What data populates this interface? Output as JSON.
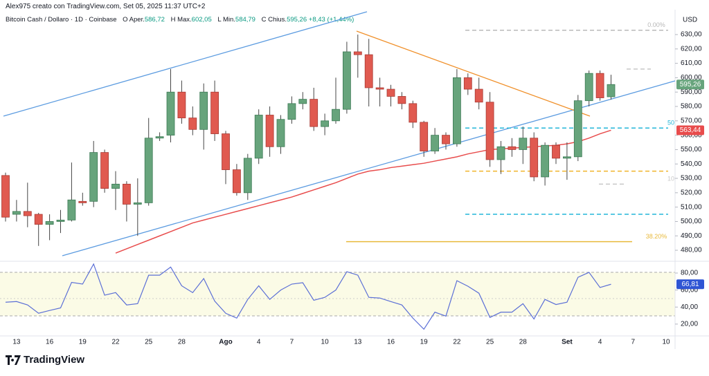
{
  "header": {
    "author_line": "Alex975 creato con TradingView.com, Set 05, 2025 11:37 UTC+2"
  },
  "legend": {
    "symbol": "Bitcoin Cash / Dollaro · 1D · Coinbase",
    "o_key": "O",
    "o_label": "Aper.",
    "o_value": "586,72",
    "h_key": "H",
    "h_label": "Max.",
    "h_value": "602,05",
    "l_key": "L",
    "l_label": "Min.",
    "l_value": "584,79",
    "c_key": "C",
    "c_label": "Chius.",
    "c_value": "595,26",
    "change": "+8,43 (+1,44%)"
  },
  "brand": "TradingView",
  "chart_data": [
    {
      "type": "candlestick",
      "y_unit": "USD",
      "up_color": "#67a47c",
      "down_color": "#e05a50",
      "categories": [
        null,
        "13",
        null,
        null,
        "16",
        null,
        null,
        "19",
        null,
        null,
        "22",
        null,
        null,
        "25",
        null,
        null,
        "28",
        null,
        null,
        null,
        "Ago",
        null,
        null,
        "4",
        null,
        null,
        "7",
        null,
        null,
        "10",
        null,
        null,
        "13",
        null,
        null,
        "16",
        null,
        null,
        "19",
        null,
        null,
        "22",
        null,
        null,
        "25",
        null,
        null,
        "28",
        null,
        null,
        null,
        "Set",
        null,
        null,
        "4",
        null,
        null,
        "7",
        null,
        null,
        "10"
      ],
      "open": [
        532,
        505,
        507,
        505,
        498,
        500,
        501,
        514,
        514,
        548,
        523,
        526,
        512,
        513,
        558,
        560,
        590,
        572,
        564,
        590,
        561,
        536,
        520,
        544,
        574,
        552,
        571,
        582,
        585,
        566,
        570,
        578,
        618,
        616,
        593,
        592,
        587,
        582,
        569,
        549,
        560,
        554,
        600,
        592,
        583,
        543,
        552,
        550,
        558,
        531,
        553,
        544,
        545,
        584,
        603,
        586.72,
        null,
        null,
        null,
        null,
        null
      ],
      "high": [
        534,
        515,
        527,
        506,
        505,
        508,
        541,
        520,
        556,
        550,
        535,
        528,
        530,
        572,
        562,
        606,
        598,
        580,
        596,
        598,
        563,
        540,
        547,
        578,
        580,
        574,
        587,
        590,
        593,
        575,
        600,
        625,
        630,
        627,
        600,
        595,
        590,
        584,
        570,
        565,
        562,
        606,
        603,
        600,
        590,
        556,
        558,
        566,
        562,
        555,
        555,
        555,
        588,
        605,
        605,
        602.05,
        null,
        null,
        null,
        null,
        null
      ],
      "low": [
        500,
        500,
        496,
        483,
        487,
        492,
        500,
        511,
        510,
        520,
        508,
        500,
        490,
        511,
        556,
        555,
        568,
        560,
        550,
        556,
        526,
        518,
        515,
        540,
        545,
        547,
        568,
        578,
        563,
        560,
        568,
        575,
        600,
        580,
        580,
        580,
        578,
        565,
        545,
        547,
        550,
        552,
        588,
        578,
        538,
        533,
        545,
        540,
        528,
        525,
        540,
        529,
        542,
        580,
        584,
        584.79,
        null,
        null,
        null,
        null,
        null
      ],
      "close": [
        503,
        507,
        504,
        498,
        500,
        501,
        515,
        513,
        548,
        523,
        526,
        512,
        513,
        558,
        559,
        590,
        572,
        564,
        590,
        561,
        536,
        520,
        544,
        574,
        552,
        571,
        582,
        585,
        566,
        570,
        578,
        618,
        616,
        593,
        592,
        587,
        582,
        569,
        549,
        560,
        554,
        600,
        592,
        583,
        543,
        552,
        550,
        558,
        531,
        553,
        544,
        545,
        584,
        603,
        586,
        595.26,
        null,
        null,
        null,
        null,
        null
      ],
      "ma": {
        "color": "#e84c4c",
        "values": [
          null,
          null,
          null,
          null,
          null,
          null,
          null,
          null,
          null,
          null,
          478,
          481,
          484,
          487,
          490,
          493,
          496,
          499,
          501,
          503,
          505,
          507,
          509,
          511,
          513,
          515,
          517,
          519.5,
          522,
          524.5,
          527,
          530,
          533,
          535,
          536,
          537.5,
          538.5,
          539.5,
          540.5,
          542,
          543.5,
          545,
          547,
          548.5,
          550,
          550.5,
          551,
          551.5,
          552,
          552.5,
          553,
          554,
          555.5,
          558,
          561,
          563.44,
          null,
          null,
          null,
          null,
          null
        ]
      },
      "price_tags": [
        {
          "value": 595.26,
          "label": "595,26",
          "color": "#67a47c"
        },
        {
          "value": 563.44,
          "label": "563,44",
          "color": "#e84c4c"
        }
      ],
      "levels": [
        {
          "value": 633,
          "color": "#b8b8b8",
          "dash": true,
          "label": "0.00%"
        },
        {
          "value": 606,
          "color": "#c8c8c8",
          "dash": true
        },
        {
          "value": 565,
          "color": "#22b5d8",
          "dash": true,
          "label": "50"
        },
        {
          "value": 535,
          "color": "#f0b429",
          "dash": true
        },
        {
          "value": 526,
          "color": "#c8c8c8",
          "dash": true,
          "label": "10"
        },
        {
          "value": 505,
          "color": "#22b5d8",
          "dash": true
        },
        {
          "value": 486,
          "color": "#e8b93a",
          "dash": false,
          "label": "38.20%"
        }
      ],
      "ylim": [
        473.3,
        647.3
      ],
      "yticks": [
        {
          "value": 480,
          "label": "480,00"
        },
        {
          "value": 490,
          "label": "490,00"
        },
        {
          "value": 500,
          "label": "500,00"
        },
        {
          "value": 510,
          "label": "510,00"
        },
        {
          "value": 520,
          "label": "520,00"
        },
        {
          "value": 530,
          "label": "530,00"
        },
        {
          "value": 540,
          "label": "540,00"
        },
        {
          "value": 550,
          "label": "550,00"
        },
        {
          "value": 560,
          "label": "560,00"
        },
        {
          "value": 570,
          "label": "570,00"
        },
        {
          "value": 580,
          "label": "580,00"
        },
        {
          "value": 590,
          "label": "590,00"
        },
        {
          "value": 600,
          "label": "600,00"
        },
        {
          "value": 610,
          "label": "610,00"
        },
        {
          "value": 620,
          "label": "620,00"
        },
        {
          "value": 630,
          "label": "630,00"
        }
      ]
    },
    {
      "type": "line",
      "color": "#5b6fd6",
      "values": [
        45.7,
        46.5,
        42.5,
        32.7,
        36,
        39,
        69,
        67,
        90.6,
        54,
        57,
        42.5,
        44,
        77.5,
        77.5,
        87,
        65,
        57,
        73.5,
        47,
        32.7,
        27,
        49,
        65,
        49,
        60,
        67,
        68.6,
        48,
        51.4,
        60,
        81.6,
        77.5,
        51.4,
        50.6,
        46.5,
        42.5,
        27,
        14,
        34,
        29.4,
        71,
        64.5,
        56.3,
        27.8,
        34,
        34,
        44,
        26,
        49,
        43,
        45.7,
        75,
        80.8,
        63,
        66.81,
        null,
        null,
        null,
        null,
        null
      ],
      "value_labels": [
        null,
        null,
        null,
        null,
        null,
        null,
        null,
        null,
        null,
        null,
        null,
        null,
        null,
        null,
        null,
        null,
        null,
        null,
        null,
        null,
        null,
        null,
        null,
        null,
        null,
        null,
        null,
        null,
        null,
        null,
        null,
        null,
        null,
        null,
        null,
        null,
        null,
        null,
        null,
        null,
        null,
        null,
        null,
        null,
        null,
        null,
        null,
        null,
        null,
        null,
        null,
        null,
        null,
        null,
        null,
        "66,81",
        null,
        null,
        null,
        null,
        null
      ],
      "tag_color": "#2f55d4",
      "ylim": [
        6.1,
        92.2
      ],
      "yticks": [
        {
          "value": 20,
          "label": "20,00"
        },
        {
          "value": 40,
          "label": "40,00"
        },
        {
          "value": 60,
          "label": "60,00"
        },
        {
          "value": 80,
          "label": "80,00"
        }
      ]
    }
  ]
}
